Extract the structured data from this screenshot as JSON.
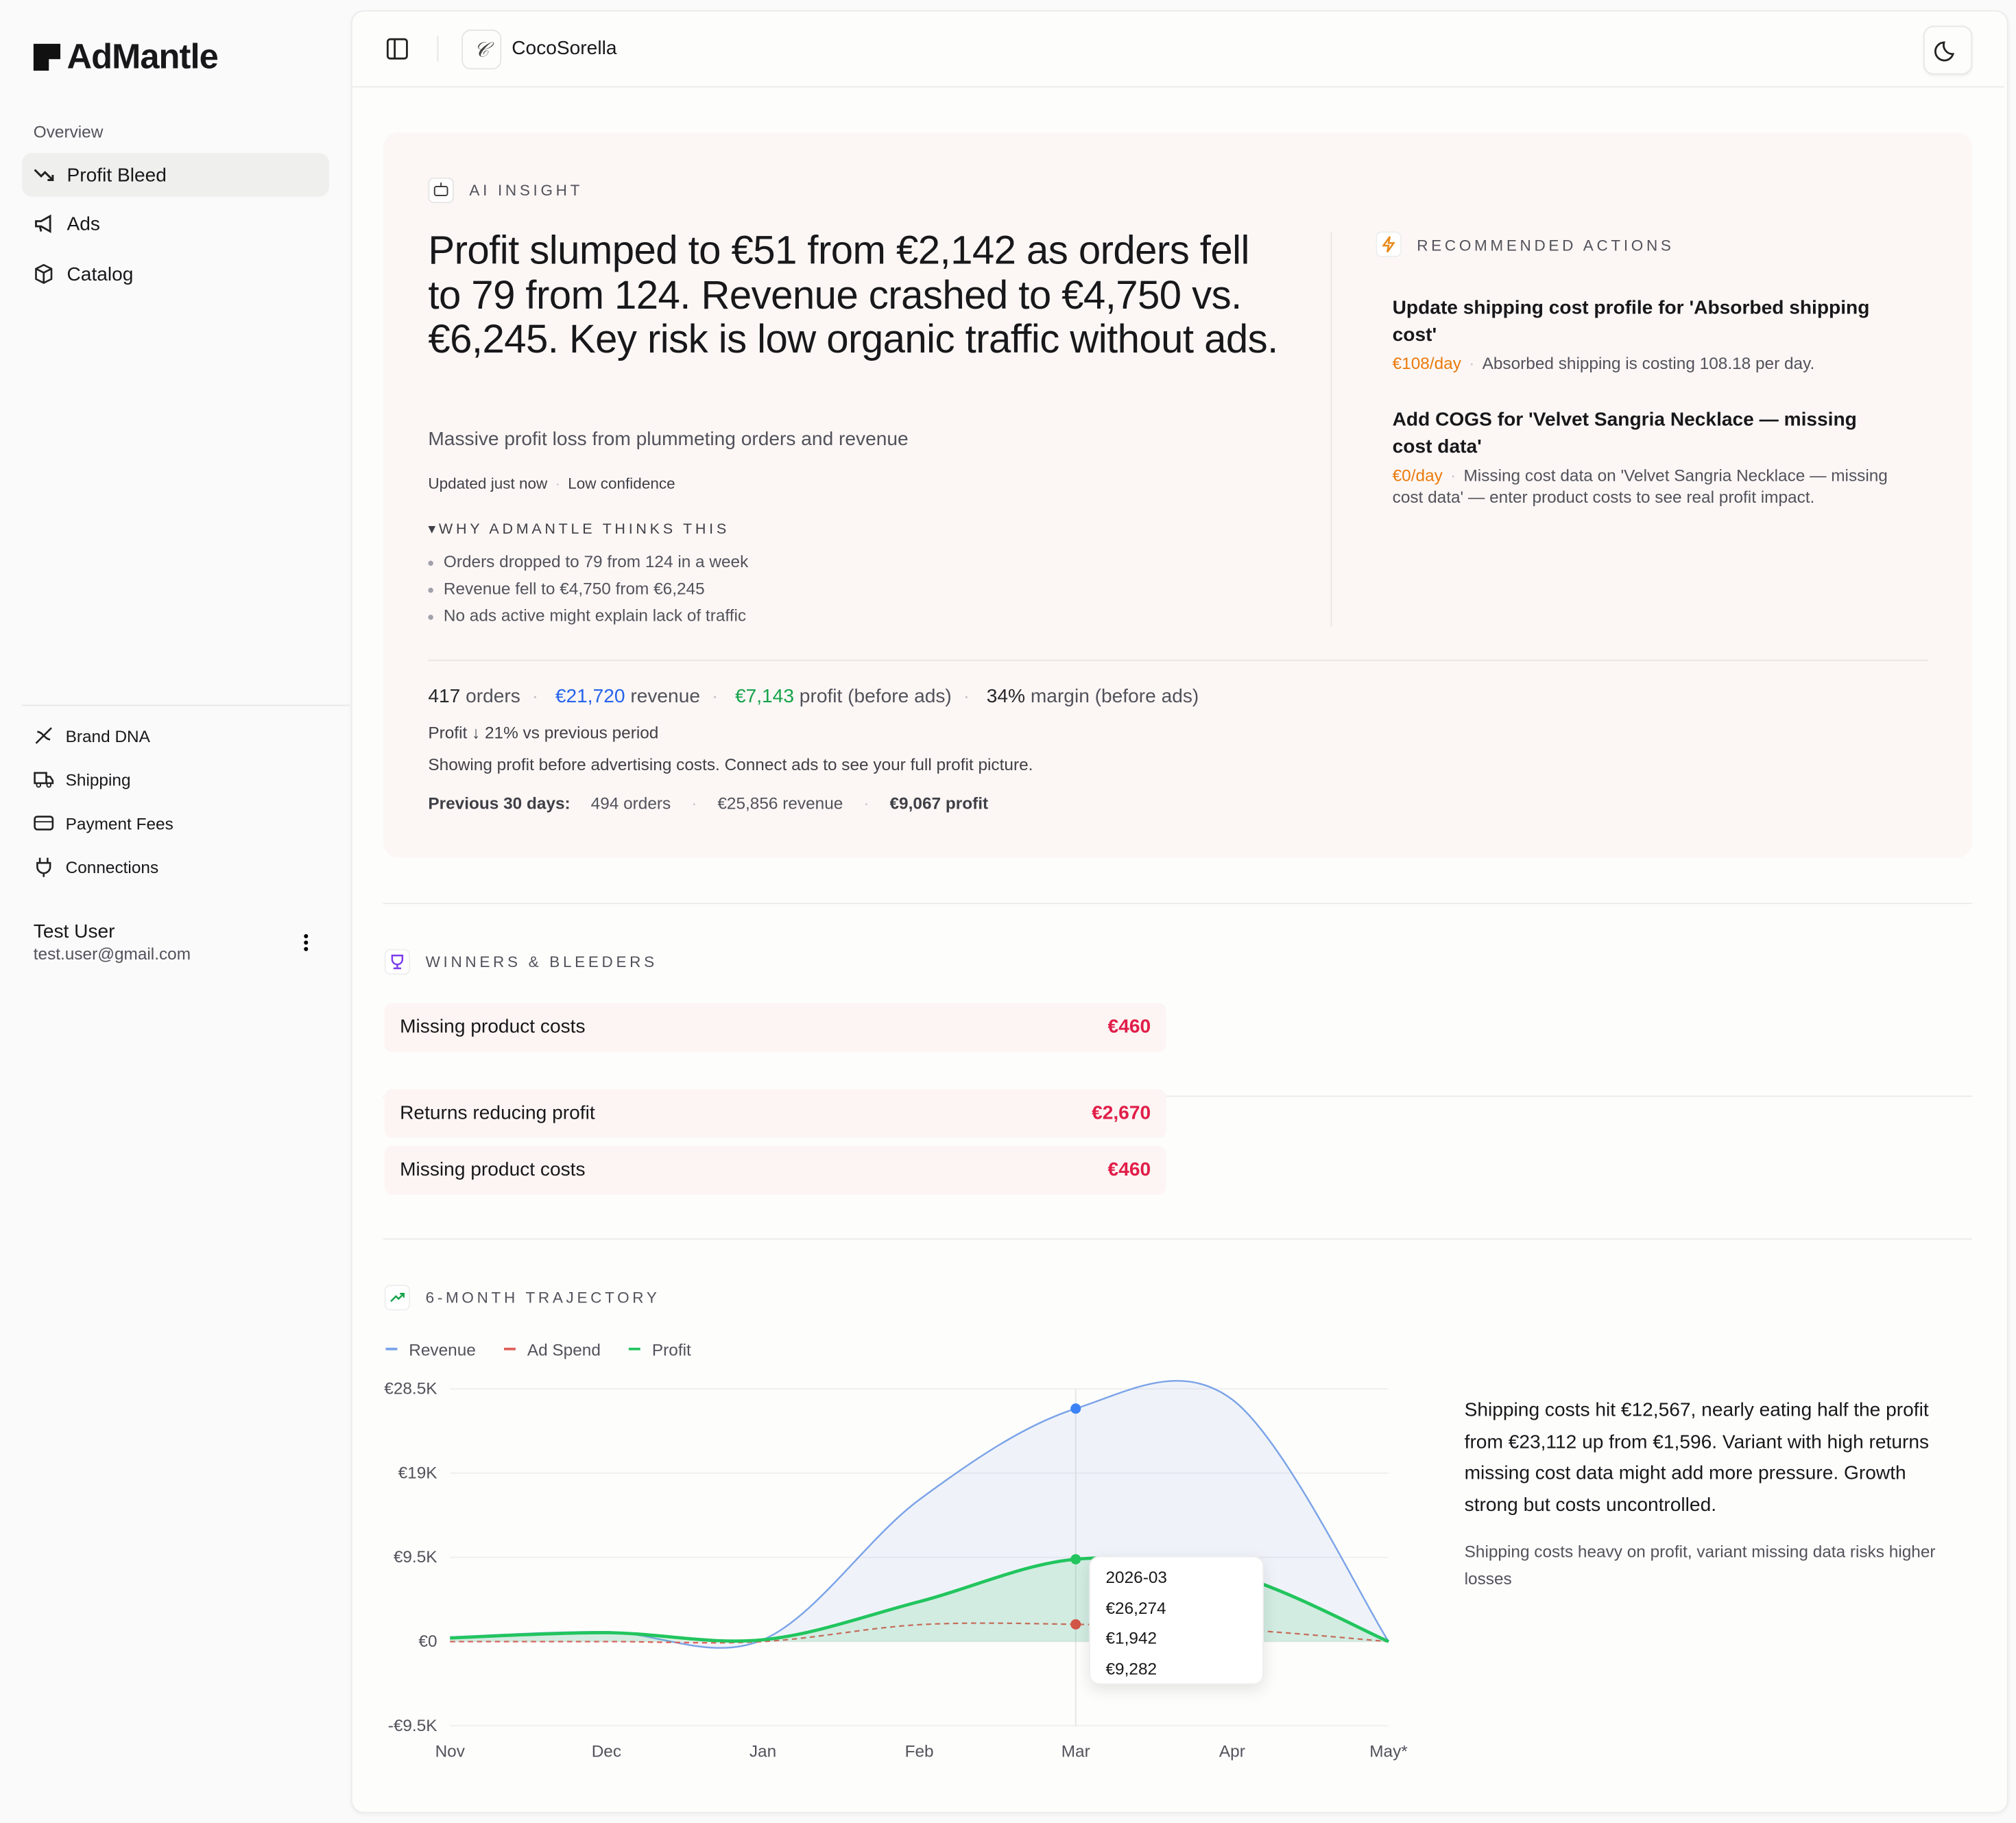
{
  "sidebar": {
    "brand": "AdMantle",
    "section": "Overview",
    "nav": [
      "Profit Bleed",
      "Ads",
      "Catalog"
    ],
    "settings": [
      "Brand DNA",
      "Shipping",
      "Payment Fees",
      "Connections"
    ],
    "user": {
      "name": "Test User",
      "email": "test.user@gmail.com"
    }
  },
  "header": {
    "store": "CocoSorella"
  },
  "insight": {
    "label": "AI INSIGHT",
    "headline": "Profit slumped to €51 from €2,142 as orders fell to 79 from 124. Revenue crashed to €4,750 vs. €6,245. Key risk is low organic traffic without ads.",
    "summary": "Massive profit loss from plummeting orders and revenue",
    "meta": [
      "Updated just now",
      "Low confidence"
    ],
    "why_title": "WHY ADMANTLE THINKS THIS",
    "reasons": [
      "Orders dropped to 79 from 124 in a week",
      "Revenue fell to €4,750 from €6,245",
      "No ads active might explain lack of traffic"
    ]
  },
  "actions": {
    "title": "RECOMMENDED ACTIONS",
    "items": [
      {
        "title": "Update shipping cost profile for 'Absorbed shipping cost'",
        "amount": "€108/day",
        "text": "Absorbed shipping is costing 108.18 per day."
      },
      {
        "title": "Add COGS for 'Velvet Sangria Necklace — missing cost data'",
        "amount": "€0/day",
        "text": "Missing cost data on 'Velvet Sangria Necklace — missing cost data' — enter product costs to see real profit impact."
      }
    ]
  },
  "stats": {
    "items": [
      {
        "value": "417",
        "label": "orders"
      },
      {
        "value": "€21,720",
        "label": "revenue"
      },
      {
        "value": "€7,143",
        "label": "profit (before ads)"
      },
      {
        "value": "34%",
        "label": "margin (before ads)"
      }
    ],
    "change": "Profit ↓ 21% vs previous period",
    "note": "Showing profit before advertising costs. Connect ads to see your full profit picture.",
    "previous": {
      "label": "Previous 30 days:",
      "items": [
        "494 orders",
        "€25,856 revenue",
        "€9,067 profit"
      ]
    }
  },
  "winners": {
    "title": "WINNERS & BLEEDERS",
    "rows": [
      {
        "label": "Missing product costs",
        "value": "€460"
      },
      {
        "label": "Returns reducing profit",
        "value": "€2,670"
      },
      {
        "label": "Missing product costs",
        "value": "€460"
      }
    ]
  },
  "chart_data": {
    "type": "line",
    "title": "6-MONTH TRAJECTORY",
    "categories": [
      "Nov",
      "Dec",
      "Jan",
      "Feb",
      "Mar",
      "Apr",
      "May*"
    ],
    "series": [
      {
        "name": "Revenue",
        "color": "#7ba3e8",
        "values": [
          500,
          1100,
          200,
          16000,
          26274,
          27300,
          0
        ],
        "value_labels": [
          null,
          null,
          null,
          null,
          "€26,274",
          null,
          null
        ]
      },
      {
        "name": "Ad Spend",
        "color": "#e0605a",
        "values": [
          0,
          0,
          0,
          1900,
          1942,
          1400,
          0
        ],
        "value_labels": [
          null,
          null,
          null,
          null,
          "€1,942",
          null,
          null
        ]
      },
      {
        "name": "Profit",
        "color": "#22c55e",
        "values": [
          400,
          1000,
          200,
          4500,
          9282,
          7600,
          0
        ],
        "value_labels": [
          null,
          null,
          null,
          null,
          "€9,282",
          null,
          null
        ]
      }
    ],
    "tooltip_title": "2026-03",
    "ylim": [
      -9500,
      28500
    ],
    "yticks": [
      {
        "value": -9500,
        "label": "-€9.5K"
      },
      {
        "value": 0,
        "label": "€0"
      },
      {
        "value": 9500,
        "label": "€9.5K"
      },
      {
        "value": 19000,
        "label": "€19K"
      },
      {
        "value": 28500,
        "label": "€28.5K"
      }
    ],
    "grid": true
  },
  "trajectory_note": {
    "text": "Shipping costs hit €12,567, nearly eating half the profit from €23,112 up from €1,596. Variant with high returns missing cost data might add more pressure. Growth strong but costs uncontrolled.",
    "sub": "Shipping costs heavy on profit, variant missing data risks higher losses"
  }
}
